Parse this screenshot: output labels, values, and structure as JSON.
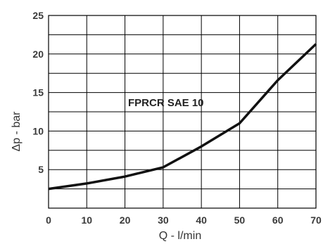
{
  "chart_data": {
    "type": "line",
    "title": "",
    "xlabel": "Q - l/min",
    "ylabel": "Δp - bar",
    "annotation": "FPRCR SAE 10",
    "xlim": [
      0,
      70
    ],
    "ylim": [
      0,
      25
    ],
    "x_ticks": [
      0,
      10,
      20,
      30,
      40,
      50,
      60,
      70
    ],
    "y_ticks": [
      5,
      10,
      15,
      20,
      25
    ],
    "grid": true,
    "series": [
      {
        "x": [
          0,
          10,
          20,
          30,
          40,
          50,
          60,
          70
        ],
        "y": [
          2.5,
          3.2,
          4.1,
          5.3,
          8.0,
          11.0,
          16.6,
          21.3
        ]
      }
    ],
    "colors": {
      "line": "#111111",
      "grid": "#000000",
      "text": "#333333"
    }
  }
}
